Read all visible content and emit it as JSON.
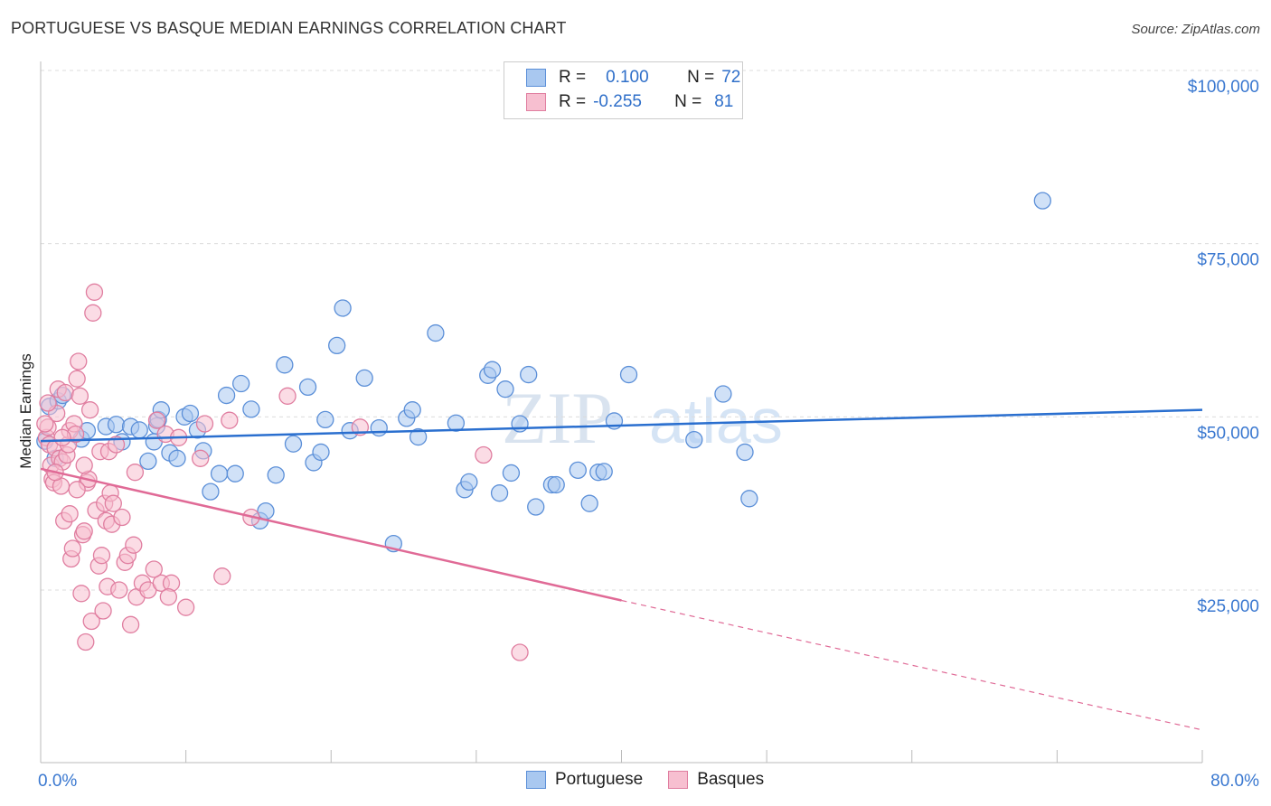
{
  "title": "PORTUGUESE VS BASQUE MEDIAN EARNINGS CORRELATION CHART",
  "source": "Source: ZipAtlas.com",
  "watermark": "ZIPatlas",
  "legend": {
    "rows": [
      {
        "r_label": "R =",
        "r_value": "0.100",
        "n_label": "N =",
        "n_value": "72",
        "color": "#a9c8f0",
        "border": "#5b8fd8"
      },
      {
        "r_label": "R =",
        "r_value": "-0.255",
        "n_label": "N =",
        "n_value": "81",
        "color": "#f7bfd0",
        "border": "#e07ea0"
      }
    ]
  },
  "bottom_legend": [
    {
      "label": "Portuguese",
      "color": "#a9c8f0",
      "border": "#5b8fd8"
    },
    {
      "label": "Basques",
      "color": "#f7bfd0",
      "border": "#e07ea0"
    }
  ],
  "chart_data": {
    "type": "scatter",
    "title": "PORTUGUESE VS BASQUE MEDIAN EARNINGS CORRELATION CHART",
    "xlabel": "",
    "ylabel": "Median Earnings",
    "xlim": [
      0,
      80
    ],
    "ylim": [
      0,
      105000
    ],
    "x_tick_labels": [
      "0.0%",
      "80.0%"
    ],
    "y_ticks": [
      25000,
      50000,
      75000,
      100000
    ],
    "y_tick_labels": [
      "$25,000",
      "$50,000",
      "$75,000",
      "$100,000"
    ],
    "grid": true,
    "legend_position": "top-center",
    "series": [
      {
        "name": "Portuguese",
        "color": "#5b8fd8",
        "fill": "#a9c8f0",
        "trend": {
          "x": [
            0,
            80
          ],
          "y": [
            46500,
            51000
          ],
          "color": "#2a6fcf"
        },
        "points": [
          [
            0.6,
            51.5
          ],
          [
            1.2,
            52.3
          ],
          [
            1.5,
            53.1
          ],
          [
            2.8,
            46.8
          ],
          [
            3.2,
            48.0
          ],
          [
            4.5,
            48.6
          ],
          [
            5.2,
            48.9
          ],
          [
            5.6,
            46.4
          ],
          [
            6.2,
            48.6
          ],
          [
            6.8,
            48.1
          ],
          [
            7.4,
            43.6
          ],
          [
            7.8,
            46.4
          ],
          [
            8.0,
            48.7
          ],
          [
            8.1,
            49.6
          ],
          [
            8.3,
            51.0
          ],
          [
            8.9,
            44.8
          ],
          [
            9.4,
            44.0
          ],
          [
            9.9,
            50.0
          ],
          [
            10.3,
            50.5
          ],
          [
            10.8,
            48.1
          ],
          [
            11.2,
            45.1
          ],
          [
            11.7,
            39.2
          ],
          [
            12.3,
            41.8
          ],
          [
            12.8,
            53.1
          ],
          [
            13.4,
            41.8
          ],
          [
            13.8,
            54.8
          ],
          [
            14.5,
            51.1
          ],
          [
            15.1,
            35.0
          ],
          [
            15.5,
            36.4
          ],
          [
            16.2,
            41.6
          ],
          [
            16.8,
            57.5
          ],
          [
            17.4,
            46.1
          ],
          [
            18.4,
            54.3
          ],
          [
            18.8,
            43.4
          ],
          [
            19.3,
            44.9
          ],
          [
            19.6,
            49.6
          ],
          [
            20.4,
            60.3
          ],
          [
            20.8,
            65.7
          ],
          [
            21.3,
            48.0
          ],
          [
            22.3,
            55.6
          ],
          [
            23.3,
            48.4
          ],
          [
            24.3,
            31.7
          ],
          [
            25.2,
            49.8
          ],
          [
            25.6,
            51.0
          ],
          [
            26.0,
            47.1
          ],
          [
            27.2,
            62.1
          ],
          [
            28.6,
            49.1
          ],
          [
            29.2,
            39.5
          ],
          [
            29.5,
            40.6
          ],
          [
            30.8,
            56.0
          ],
          [
            31.1,
            56.8
          ],
          [
            31.6,
            39.0
          ],
          [
            32.0,
            54.0
          ],
          [
            32.4,
            41.9
          ],
          [
            33.0,
            49.0
          ],
          [
            33.6,
            56.1
          ],
          [
            34.1,
            37.0
          ],
          [
            35.2,
            40.2
          ],
          [
            35.5,
            40.2
          ],
          [
            37.0,
            42.3
          ],
          [
            37.8,
            37.5
          ],
          [
            38.4,
            42.0
          ],
          [
            38.8,
            42.1
          ],
          [
            39.5,
            49.4
          ],
          [
            40.5,
            56.1
          ],
          [
            45.0,
            46.7
          ],
          [
            47.0,
            53.3
          ],
          [
            48.5,
            44.9
          ],
          [
            48.8,
            38.2
          ],
          [
            69.0,
            81.2
          ],
          [
            0.3,
            46.5
          ],
          [
            1.0,
            44.0
          ]
        ]
      },
      {
        "name": "Basques",
        "color": "#e07ea0",
        "fill": "#f7bfd0",
        "trend": {
          "x": [
            0,
            40
          ],
          "y": [
            42500,
            23500
          ],
          "dashed_to": [
            80,
            4800
          ],
          "color": "#e06a96"
        },
        "points": [
          [
            0.4,
            47.0
          ],
          [
            0.5,
            48.5
          ],
          [
            0.6,
            46.0
          ],
          [
            0.7,
            43.0
          ],
          [
            0.8,
            41.0
          ],
          [
            0.9,
            40.5
          ],
          [
            1.0,
            45.5
          ],
          [
            1.1,
            50.5
          ],
          [
            1.2,
            54.0
          ],
          [
            1.3,
            44.0
          ],
          [
            1.4,
            40.0
          ],
          [
            1.5,
            43.5
          ],
          [
            1.6,
            35.0
          ],
          [
            1.7,
            53.5
          ],
          [
            1.8,
            44.5
          ],
          [
            1.9,
            46.0
          ],
          [
            2.0,
            48.0
          ],
          [
            2.1,
            29.5
          ],
          [
            2.2,
            31.0
          ],
          [
            2.3,
            49.0
          ],
          [
            2.4,
            47.5
          ],
          [
            2.5,
            55.5
          ],
          [
            2.6,
            58.0
          ],
          [
            2.7,
            53.0
          ],
          [
            2.8,
            24.5
          ],
          [
            2.9,
            33.0
          ],
          [
            3.0,
            33.5
          ],
          [
            3.1,
            17.5
          ],
          [
            3.2,
            40.5
          ],
          [
            3.3,
            41.0
          ],
          [
            3.4,
            51.0
          ],
          [
            3.5,
            20.5
          ],
          [
            3.6,
            65.0
          ],
          [
            3.7,
            68.0
          ],
          [
            3.8,
            36.5
          ],
          [
            4.0,
            28.5
          ],
          [
            4.1,
            45.0
          ],
          [
            4.2,
            30.0
          ],
          [
            4.3,
            22.0
          ],
          [
            4.4,
            37.5
          ],
          [
            4.5,
            35.0
          ],
          [
            4.6,
            25.5
          ],
          [
            4.7,
            45.0
          ],
          [
            4.8,
            39.0
          ],
          [
            4.9,
            34.5
          ],
          [
            5.0,
            37.5
          ],
          [
            5.2,
            46.0
          ],
          [
            5.4,
            25.0
          ],
          [
            5.6,
            35.5
          ],
          [
            5.8,
            29.0
          ],
          [
            6.0,
            30.0
          ],
          [
            6.2,
            20.0
          ],
          [
            6.4,
            31.5
          ],
          [
            6.6,
            24.0
          ],
          [
            7.0,
            26.0
          ],
          [
            7.4,
            25.0
          ],
          [
            8.0,
            49.5
          ],
          [
            8.3,
            26.0
          ],
          [
            8.6,
            47.5
          ],
          [
            9.0,
            26.0
          ],
          [
            10.0,
            22.5
          ],
          [
            11.0,
            44.0
          ],
          [
            11.3,
            49.0
          ],
          [
            12.5,
            27.0
          ],
          [
            13.0,
            49.5
          ],
          [
            14.5,
            35.5
          ],
          [
            17.0,
            53.0
          ],
          [
            22.0,
            48.5
          ],
          [
            30.5,
            44.5
          ],
          [
            33.0,
            16.0
          ],
          [
            0.3,
            49.0
          ],
          [
            0.5,
            52.0
          ],
          [
            1.0,
            42.0
          ],
          [
            1.5,
            47.0
          ],
          [
            2.0,
            36.0
          ],
          [
            2.5,
            39.5
          ],
          [
            3.0,
            43.0
          ],
          [
            6.5,
            42.0
          ],
          [
            7.8,
            28.0
          ],
          [
            8.8,
            24.0
          ],
          [
            9.5,
            47.0
          ]
        ]
      }
    ]
  }
}
